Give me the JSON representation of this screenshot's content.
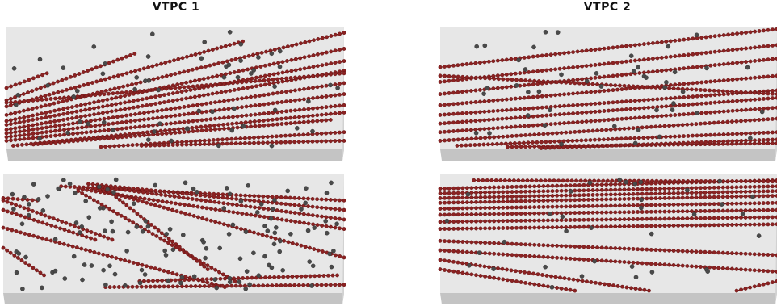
{
  "titles": {
    "left": "VTPC 1",
    "right": "VTPC 2"
  },
  "colors": {
    "box_face": "#e7e7e7",
    "box_top": "#f3f3f3",
    "box_side": "#d2d2d2",
    "box_bottom": "#c4c4c4",
    "track": "#7a1a1a",
    "track_hit": "#8b2222",
    "noise_hit": "#4a4a4a"
  },
  "panels": [
    {
      "name": "vtpc1-upper",
      "tracks": [
        [
          0.0,
          0.72,
          1.0,
          0.05
        ],
        [
          0.0,
          0.77,
          1.0,
          0.18
        ],
        [
          0.0,
          0.8,
          1.0,
          0.28
        ],
        [
          0.0,
          0.84,
          1.0,
          0.36
        ],
        [
          0.0,
          0.87,
          1.0,
          0.46
        ],
        [
          0.0,
          0.9,
          1.0,
          0.55
        ],
        [
          0.0,
          0.93,
          1.0,
          0.64
        ],
        [
          0.02,
          0.97,
          1.0,
          0.7
        ],
        [
          0.0,
          0.65,
          0.7,
          0.12
        ],
        [
          0.0,
          0.6,
          0.38,
          0.22
        ],
        [
          0.0,
          0.5,
          0.12,
          0.38
        ],
        [
          0.28,
          0.98,
          1.0,
          0.86
        ],
        [
          0.4,
          0.97,
          1.0,
          0.93
        ],
        [
          0.08,
          0.96,
          0.96,
          0.76
        ],
        [
          0.0,
          0.62,
          1.0,
          0.38
        ]
      ],
      "noise": 60
    },
    {
      "name": "vtpc2-upper",
      "tracks": [
        [
          0.0,
          0.33,
          1.0,
          0.02
        ],
        [
          0.0,
          0.45,
          1.0,
          0.15
        ],
        [
          0.0,
          0.55,
          1.0,
          0.26
        ],
        [
          0.0,
          0.64,
          1.0,
          0.4
        ],
        [
          0.0,
          0.72,
          1.0,
          0.52
        ],
        [
          0.0,
          0.79,
          1.0,
          0.58
        ],
        [
          0.0,
          0.86,
          1.0,
          0.66
        ],
        [
          0.0,
          0.93,
          1.0,
          0.75
        ],
        [
          0.05,
          0.97,
          1.0,
          0.86
        ],
        [
          0.2,
          0.98,
          1.0,
          0.95
        ],
        [
          0.3,
          0.99,
          1.0,
          0.92
        ],
        [
          0.0,
          0.4,
          1.0,
          0.55
        ]
      ],
      "noise": 45
    },
    {
      "name": "vtpc1-lower",
      "tracks": [
        [
          0.17,
          0.1,
          1.0,
          0.22
        ],
        [
          0.25,
          0.08,
          1.0,
          0.3
        ],
        [
          0.28,
          0.1,
          1.0,
          0.38
        ],
        [
          0.22,
          0.12,
          1.0,
          0.46
        ],
        [
          0.27,
          0.12,
          1.0,
          0.7
        ],
        [
          0.22,
          0.14,
          0.68,
          0.9
        ],
        [
          0.3,
          0.12,
          0.6,
          0.8
        ],
        [
          0.0,
          0.22,
          0.32,
          0.55
        ],
        [
          0.0,
          0.45,
          0.65,
          0.95
        ],
        [
          0.0,
          0.3,
          0.27,
          0.55
        ],
        [
          0.0,
          0.62,
          0.12,
          0.85
        ],
        [
          0.3,
          0.95,
          1.0,
          0.93
        ],
        [
          0.4,
          0.9,
          0.98,
          0.85
        ],
        [
          0.0,
          0.2,
          0.1,
          0.22
        ]
      ],
      "noise": 130
    },
    {
      "name": "vtpc2-lower",
      "tracks": [
        [
          0.0,
          0.12,
          1.0,
          0.05
        ],
        [
          0.0,
          0.16,
          1.0,
          0.1
        ],
        [
          0.0,
          0.2,
          1.0,
          0.14
        ],
        [
          0.0,
          0.24,
          1.0,
          0.18
        ],
        [
          0.0,
          0.29,
          1.0,
          0.24
        ],
        [
          0.0,
          0.34,
          1.0,
          0.3
        ],
        [
          0.0,
          0.4,
          1.0,
          0.36
        ],
        [
          0.0,
          0.46,
          1.0,
          0.42
        ],
        [
          0.1,
          0.05,
          1.0,
          0.06
        ],
        [
          0.0,
          0.56,
          1.0,
          0.68
        ],
        [
          0.0,
          0.64,
          1.0,
          0.82
        ],
        [
          0.0,
          0.72,
          0.62,
          0.98
        ],
        [
          0.0,
          0.8,
          0.4,
          0.98
        ],
        [
          0.88,
          0.98,
          1.0,
          0.9
        ]
      ],
      "noise": 35
    }
  ]
}
